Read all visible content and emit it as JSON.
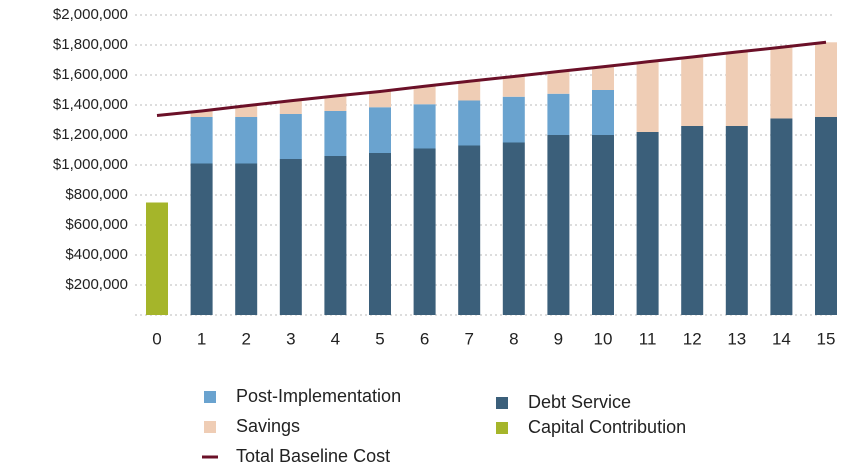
{
  "chart_data": {
    "type": "bar",
    "categories": [
      "0",
      "1",
      "2",
      "3",
      "4",
      "5",
      "6",
      "7",
      "8",
      "9",
      "10",
      "11",
      "12",
      "13",
      "14",
      "15"
    ],
    "ylim": [
      0,
      2000000
    ],
    "yticks": [
      {
        "value": 200000,
        "label": "$200,000"
      },
      {
        "value": 400000,
        "label": "$400,000"
      },
      {
        "value": 600000,
        "label": "$600,000"
      },
      {
        "value": 800000,
        "label": "$800,000"
      },
      {
        "value": 1000000,
        "label": "$1,000,000"
      },
      {
        "value": 1200000,
        "label": "$1,200,000"
      },
      {
        "value": 1400000,
        "label": "$1,400,000"
      },
      {
        "value": 1600000,
        "label": "$1,600,000"
      },
      {
        "value": 1800000,
        "label": "$1,800,000"
      },
      {
        "value": 2000000,
        "label": "$2,000,000"
      }
    ],
    "grid": true,
    "stacked": true,
    "series": [
      {
        "name": "Debt Service",
        "color": "#3b5f7a",
        "type": "bar",
        "values": [
          null,
          1010000,
          1010000,
          1040000,
          1060000,
          1080000,
          1110000,
          1130000,
          1150000,
          1200000,
          1200000,
          1220000,
          1260000,
          1260000,
          1310000,
          1320000
        ]
      },
      {
        "name": "Post-Implementation",
        "color": "#6aa3cf",
        "type": "bar",
        "values": [
          null,
          310000,
          310000,
          300000,
          300000,
          305000,
          295000,
          300000,
          305000,
          275000,
          300000,
          null,
          null,
          null,
          null,
          null
        ]
      },
      {
        "name": "Savings",
        "color": "#efcdb5",
        "type": "bar",
        "values": [
          null,
          40000,
          75000,
          88000,
          100000,
          105000,
          120000,
          128000,
          135000,
          148000,
          155000,
          468000,
          460000,
          493000,
          475000,
          498000
        ]
      },
      {
        "name": "Capital Contribution",
        "color": "#a5b52a",
        "type": "bar",
        "values": [
          750000,
          null,
          null,
          null,
          null,
          null,
          null,
          null,
          null,
          null,
          null,
          null,
          null,
          null,
          null,
          null
        ]
      },
      {
        "name": "Total Baseline Cost",
        "color": "#6b1028",
        "type": "line",
        "values": [
          1330000,
          1360000,
          1395000,
          1428000,
          1460000,
          1490000,
          1525000,
          1558000,
          1590000,
          1623000,
          1655000,
          1688000,
          1720000,
          1753000,
          1785000,
          1818000
        ]
      }
    ]
  }
}
